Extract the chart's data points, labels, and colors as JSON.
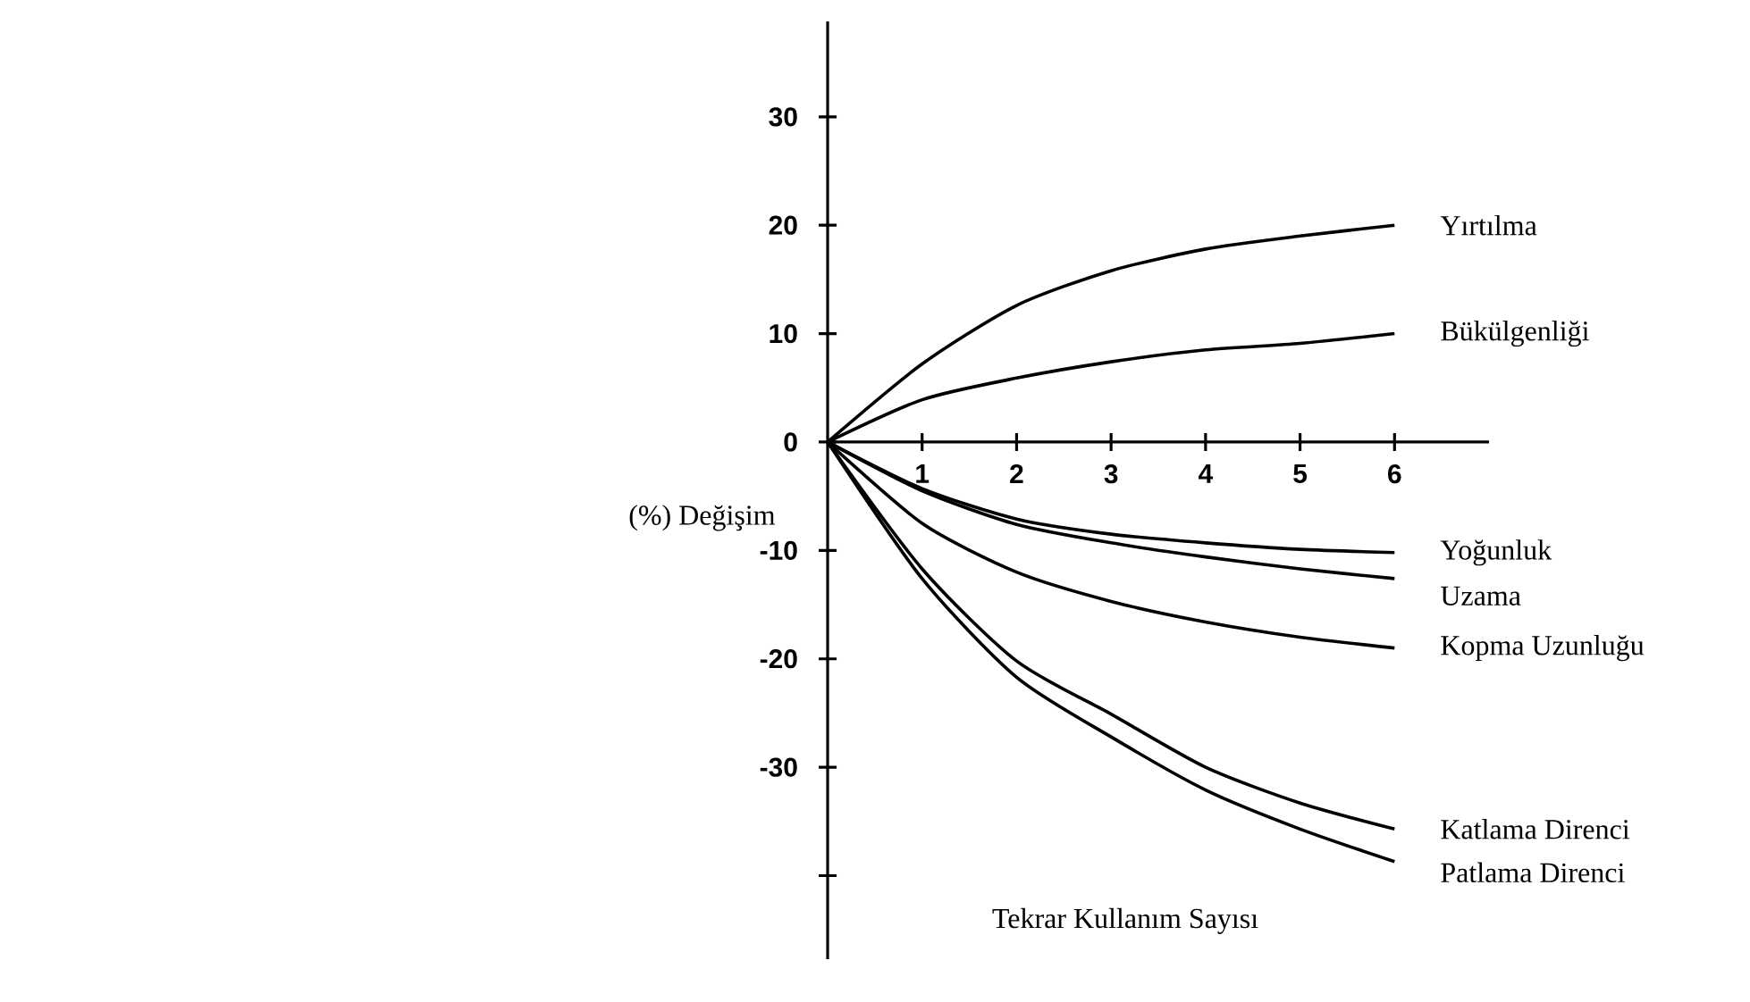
{
  "chart_data": {
    "type": "line",
    "xlabel": "Tekrar Kullanım Sayısı",
    "ylabel": "(%) Değişim",
    "x": [
      0,
      1,
      2,
      3,
      4,
      5,
      6
    ],
    "series": [
      {
        "name": "Yırtılma",
        "color": "#000000",
        "values": [
          0,
          7.2,
          12.6,
          15.8,
          17.8,
          19,
          20
        ]
      },
      {
        "name": "Bükülgenliği",
        "color": "#000000",
        "values": [
          0,
          3.9,
          5.9,
          7.4,
          8.5,
          9.1,
          10
        ]
      },
      {
        "name": "Yoğunluk",
        "color": "#000000",
        "values": [
          0,
          -4.3,
          -7.1,
          -8.5,
          -9.3,
          -9.9,
          -10.2
        ]
      },
      {
        "name": "Uzama",
        "color": "#000000",
        "values": [
          0,
          -4.5,
          -7.6,
          -9.3,
          -10.6,
          -11.7,
          -12.6
        ]
      },
      {
        "name": "Kopma Uzunluğu",
        "color": "#000000",
        "values": [
          0,
          -7.5,
          -12,
          -14.7,
          -16.6,
          -18,
          -19
        ]
      },
      {
        "name": "Katlama Direnci",
        "color": "#000000",
        "values": [
          0,
          -11.7,
          -20.2,
          -25.1,
          -30,
          -33.3,
          -35.7
        ]
      },
      {
        "name": "Patlama Direnci",
        "color": "#000000",
        "values": [
          0,
          -12.6,
          -21.7,
          -27.2,
          -32.1,
          -35.7,
          -38.7
        ]
      }
    ],
    "xlim": [
      0,
      7
    ],
    "ylim": [
      -47.7,
      38.8
    ],
    "xticks": [
      1,
      2,
      3,
      4,
      5,
      6
    ],
    "yticks": [
      30,
      20,
      10,
      0,
      -10,
      -20,
      -30,
      {
        "value": -40,
        "label": null
      }
    ]
  }
}
